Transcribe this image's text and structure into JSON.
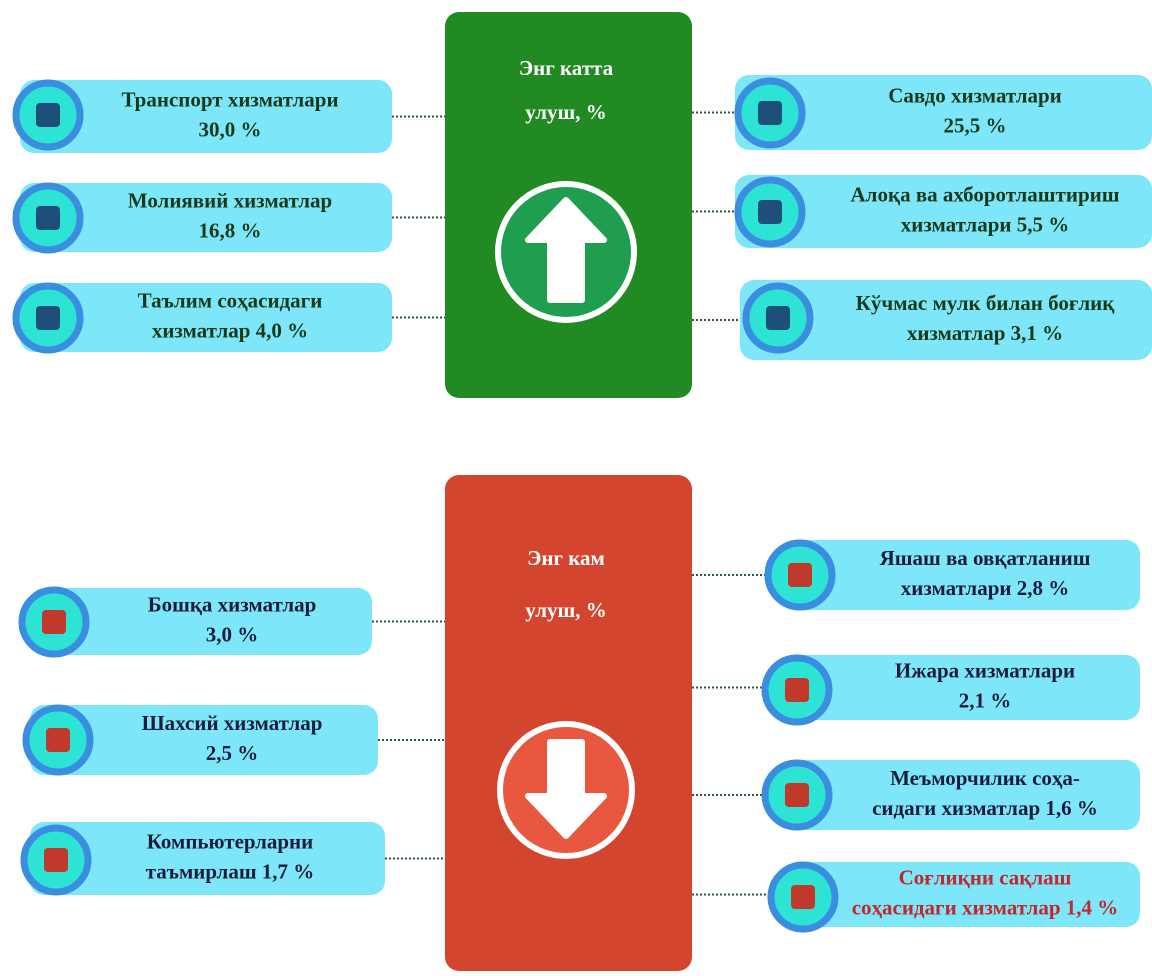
{
  "top": {
    "title": [
      "Энг катта",
      "улуш, %"
    ],
    "left": [
      {
        "lines": [
          "Транспорт хизматлари",
          "30,0 %"
        ]
      },
      {
        "lines": [
          "Молиявий хизматлар",
          "16,8 %"
        ]
      },
      {
        "lines": [
          "Таълим соҳасидаги",
          "хизматлар  4,0 %"
        ]
      }
    ],
    "right": [
      {
        "lines": [
          "Савдо хизматлари",
          "25,5 %"
        ]
      },
      {
        "lines": [
          "Алоқа ва ахборотлаштириш",
          "хизматлари  5,5 %"
        ]
      },
      {
        "lines": [
          "Кўчмас мулк билан боғлиқ",
          "хизматлар 3,1 %"
        ]
      }
    ]
  },
  "bottom": {
    "title": [
      "Энг кам",
      "улуш, %"
    ],
    "left": [
      {
        "lines": [
          "Бошқа хизматлар",
          "3,0 %"
        ]
      },
      {
        "lines": [
          "Шахсий хизматлар",
          "2,5 %"
        ]
      },
      {
        "lines": [
          "Компьютерларни",
          "таъмирлаш 1,7 %"
        ]
      }
    ],
    "right": [
      {
        "lines": [
          "Яшаш ва овқатланиш",
          "хизматлари 2,8 %"
        ]
      },
      {
        "lines": [
          "Ижара хизматлари",
          "2,1 %"
        ]
      },
      {
        "lines": [
          "Меъморчилик  соҳа-",
          "сидаги хизматлар 1,6 %"
        ]
      },
      {
        "lines": [
          "Соғлиқни сақлаш",
          "соҳасидаги хизматлар 1,4 %"
        ]
      }
    ]
  }
}
